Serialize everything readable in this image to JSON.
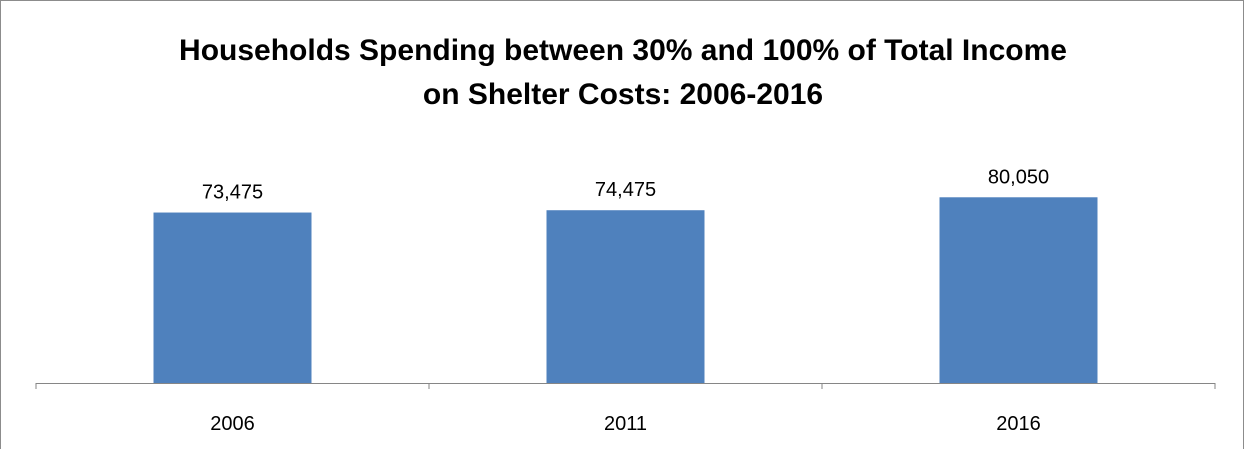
{
  "chart_data": {
    "type": "bar",
    "title_lines": [
      "Households Spending between 30% and 100% of Total Income",
      "on Shelter Costs: 2006-2016"
    ],
    "categories": [
      "2006",
      "2011",
      "2016"
    ],
    "values": [
      73475,
      74475,
      80050
    ],
    "data_labels": [
      "73,475",
      "74,475",
      "80,050"
    ],
    "ylim": [
      0,
      130000
    ],
    "bar_color": "#4f81bd",
    "axis_color": "#868686",
    "frame_color": "#8c8c8c",
    "grid": false,
    "legend": "none"
  }
}
